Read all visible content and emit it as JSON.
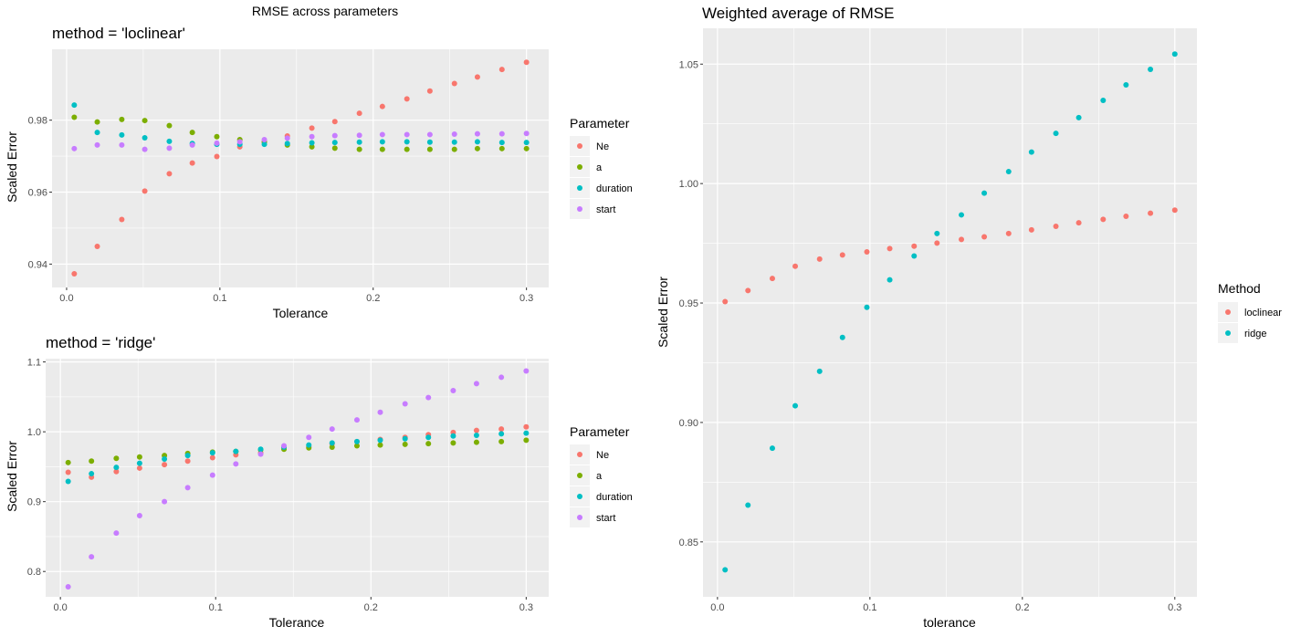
{
  "figure_title": "RMSE across parameters",
  "colors": {
    "panel_bg": "#ebebeb",
    "grid_major": "#ffffff",
    "Ne": "#F8766D",
    "a": "#7CAE00",
    "duration": "#00BFC4",
    "start": "#C77CFF",
    "loclinear": "#F8766D",
    "ridge": "#00BFC4"
  },
  "chart_data": [
    {
      "id": "loclinear",
      "type": "scatter",
      "title": "method = 'loclinear'",
      "xlabel": "Tolerance",
      "ylabel": "Scaled Error",
      "xlim": [
        -0.0095,
        0.3145
      ],
      "ylim": [
        0.9335,
        0.9997
      ],
      "xticks": [
        0.0,
        0.1,
        0.2,
        0.3
      ],
      "xtick_labels": [
        "0.0",
        "0.1",
        "0.2",
        "0.3"
      ],
      "yticks": [
        0.94,
        0.96,
        0.98
      ],
      "ytick_labels": [
        "0.94",
        "0.96",
        "0.98"
      ],
      "grid": true,
      "legend_title": "Parameter",
      "legend_position": "right",
      "x": [
        0.005,
        0.02,
        0.036,
        0.051,
        0.067,
        0.082,
        0.098,
        0.113,
        0.129,
        0.144,
        0.16,
        0.175,
        0.191,
        0.206,
        0.222,
        0.237,
        0.253,
        0.268,
        0.284,
        0.3
      ],
      "series": [
        {
          "name": "Ne",
          "values": [
            0.9373,
            0.9449,
            0.9524,
            0.9603,
            0.9651,
            0.9681,
            0.9699,
            0.9726,
            0.974,
            0.9756,
            0.9778,
            0.9796,
            0.9819,
            0.9838,
            0.9859,
            0.9881,
            0.9902,
            0.992,
            0.9941,
            0.9961
          ]
        },
        {
          "name": "a",
          "values": [
            0.9808,
            0.9795,
            0.9802,
            0.9799,
            0.9785,
            0.9766,
            0.9754,
            0.9746,
            0.9739,
            0.9731,
            0.9726,
            0.9722,
            0.9719,
            0.9719,
            0.9719,
            0.9719,
            0.9719,
            0.9721,
            0.9721,
            0.9721
          ]
        },
        {
          "name": "duration",
          "values": [
            0.9842,
            0.9766,
            0.9759,
            0.9751,
            0.9741,
            0.9735,
            0.9733,
            0.9733,
            0.9733,
            0.9735,
            0.9737,
            0.9738,
            0.9739,
            0.974,
            0.974,
            0.9739,
            0.9739,
            0.974,
            0.9738,
            0.9738
          ]
        },
        {
          "name": "start",
          "values": [
            0.9721,
            0.9731,
            0.9731,
            0.9719,
            0.9722,
            0.9731,
            0.9736,
            0.974,
            0.9746,
            0.975,
            0.9754,
            0.9757,
            0.9758,
            0.976,
            0.976,
            0.976,
            0.9761,
            0.9762,
            0.9762,
            0.9763
          ]
        }
      ]
    },
    {
      "id": "ridge",
      "type": "scatter",
      "title": "method = 'ridge'",
      "xlabel": "Tolerance",
      "ylabel": "Scaled Error",
      "xlim": [
        -0.0095,
        0.3145
      ],
      "ylim": [
        0.7637,
        1.1047
      ],
      "xticks": [
        0.0,
        0.1,
        0.2,
        0.3
      ],
      "xtick_labels": [
        "0.0",
        "0.1",
        "0.2",
        "0.3"
      ],
      "yticks": [
        0.8,
        0.9,
        1.0,
        1.1
      ],
      "ytick_labels": [
        "0.8",
        "0.9",
        "1.0",
        "1.1"
      ],
      "grid": true,
      "legend_title": "Parameter",
      "legend_position": "right",
      "x": [
        0.005,
        0.02,
        0.036,
        0.051,
        0.067,
        0.082,
        0.098,
        0.113,
        0.129,
        0.144,
        0.16,
        0.175,
        0.191,
        0.206,
        0.222,
        0.237,
        0.253,
        0.268,
        0.284,
        0.3
      ],
      "series": [
        {
          "name": "Ne",
          "values": [
            0.942,
            0.935,
            0.943,
            0.948,
            0.953,
            0.958,
            0.963,
            0.967,
            0.97,
            0.976,
            0.979,
            0.983,
            0.986,
            0.989,
            0.992,
            0.996,
            0.999,
            1.002,
            1.004,
            1.007
          ]
        },
        {
          "name": "a",
          "values": [
            0.956,
            0.958,
            0.962,
            0.964,
            0.966,
            0.969,
            0.971,
            0.972,
            0.974,
            0.975,
            0.977,
            0.978,
            0.98,
            0.981,
            0.982,
            0.983,
            0.984,
            0.985,
            0.986,
            0.988
          ]
        },
        {
          "name": "duration",
          "values": [
            0.929,
            0.94,
            0.949,
            0.955,
            0.961,
            0.966,
            0.97,
            0.972,
            0.975,
            0.978,
            0.981,
            0.984,
            0.986,
            0.988,
            0.99,
            0.992,
            0.994,
            0.995,
            0.997,
            0.998
          ]
        },
        {
          "name": "start",
          "values": [
            0.778,
            0.821,
            0.855,
            0.88,
            0.9,
            0.92,
            0.938,
            0.954,
            0.968,
            0.98,
            0.992,
            1.004,
            1.017,
            1.028,
            1.04,
            1.049,
            1.059,
            1.069,
            1.078,
            1.087
          ]
        }
      ]
    },
    {
      "id": "weighted",
      "type": "scatter",
      "title": "Weighted average of RMSE",
      "xlabel": "tolerance",
      "ylabel": "Scaled Error",
      "xlim": [
        -0.0095,
        0.3145
      ],
      "ylim": [
        0.827,
        1.065
      ],
      "xticks": [
        0.0,
        0.1,
        0.2,
        0.3
      ],
      "xtick_labels": [
        "0.0",
        "0.1",
        "0.2",
        "0.3"
      ],
      "yticks": [
        0.85,
        0.9,
        0.95,
        1.0,
        1.05
      ],
      "ytick_labels": [
        "0.85",
        "0.90",
        "0.95",
        "1.00",
        "1.05"
      ],
      "grid": true,
      "legend_title": "Method",
      "legend_position": "right",
      "x": [
        0.005,
        0.02,
        0.036,
        0.051,
        0.067,
        0.082,
        0.098,
        0.113,
        0.129,
        0.144,
        0.16,
        0.175,
        0.191,
        0.206,
        0.222,
        0.237,
        0.253,
        0.268,
        0.284,
        0.3
      ],
      "series": [
        {
          "name": "loclinear",
          "values": [
            0.9506,
            0.9552,
            0.9603,
            0.9654,
            0.9684,
            0.9701,
            0.9714,
            0.9728,
            0.9738,
            0.9751,
            0.9766,
            0.9777,
            0.9791,
            0.9806,
            0.9821,
            0.9836,
            0.985,
            0.9863,
            0.9876,
            0.9889
          ]
        },
        {
          "name": "ridge",
          "values": [
            0.8383,
            0.8654,
            0.8892,
            0.907,
            0.9214,
            0.9356,
            0.9482,
            0.9597,
            0.9697,
            0.9791,
            0.9869,
            0.996,
            1.005,
            1.0132,
            1.021,
            1.0276,
            1.0348,
            1.0413,
            1.0478,
            1.0542
          ]
        }
      ]
    }
  ]
}
